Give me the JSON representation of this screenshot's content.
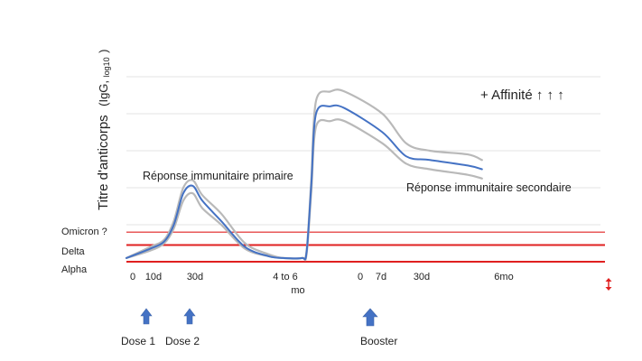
{
  "colors": {
    "mean_line": "#4472c4",
    "ci_line": "#b9b9b9",
    "threshold_line": "#e02020",
    "gridline": "#e3e3e3",
    "arrow": "#4472c4",
    "variant_arrow": "#e02020"
  },
  "chart_data": {
    "type": "line",
    "ylabel_main": "Titre d'anticorps",
    "ylabel_unit": "(IgG, ",
    "ylabel_sub": "log10",
    "ylabel_close": ")",
    "grid": true,
    "annotations": {
      "primary": "Réponse immunitaire primaire",
      "secondary": "Réponse immunitaire secondaire",
      "affinity": "+ Affinité ↑ ↑ ↑"
    },
    "x_ticks": [
      "0",
      "10d",
      "30d",
      "4 to 6",
      "mo",
      "0",
      "7d",
      "30d",
      "6mo"
    ],
    "thresholds": [
      {
        "label": "Omicron ?",
        "level": 0.16
      },
      {
        "label": "Delta",
        "level": 0.09
      },
      {
        "label": "Alpha",
        "level": 0.0
      }
    ],
    "series": [
      {
        "role": "upper",
        "points": [
          [
            0,
            0.02
          ],
          [
            0.05,
            0.08
          ],
          [
            0.08,
            0.12
          ],
          [
            0.1,
            0.22
          ],
          [
            0.12,
            0.4
          ],
          [
            0.14,
            0.44
          ],
          [
            0.16,
            0.36
          ],
          [
            0.2,
            0.26
          ],
          [
            0.25,
            0.1
          ],
          [
            0.3,
            0.04
          ],
          [
            0.33,
            0.02
          ],
          [
            0.37,
            0.02
          ],
          [
            0.38,
            0.06
          ],
          [
            0.39,
            0.45
          ],
          [
            0.4,
            0.87
          ],
          [
            0.43,
            0.92
          ],
          [
            0.46,
            0.92
          ],
          [
            0.54,
            0.8
          ],
          [
            0.59,
            0.64
          ],
          [
            0.64,
            0.6
          ],
          [
            0.72,
            0.58
          ],
          [
            0.75,
            0.55
          ]
        ]
      },
      {
        "role": "mean",
        "points": [
          [
            0,
            0.02
          ],
          [
            0.05,
            0.07
          ],
          [
            0.08,
            0.11
          ],
          [
            0.1,
            0.2
          ],
          [
            0.12,
            0.37
          ],
          [
            0.14,
            0.41
          ],
          [
            0.16,
            0.33
          ],
          [
            0.2,
            0.22
          ],
          [
            0.25,
            0.08
          ],
          [
            0.3,
            0.03
          ],
          [
            0.33,
            0.02
          ],
          [
            0.37,
            0.02
          ],
          [
            0.38,
            0.05
          ],
          [
            0.39,
            0.42
          ],
          [
            0.4,
            0.8
          ],
          [
            0.43,
            0.84
          ],
          [
            0.46,
            0.83
          ],
          [
            0.54,
            0.7
          ],
          [
            0.59,
            0.57
          ],
          [
            0.64,
            0.55
          ],
          [
            0.72,
            0.52
          ],
          [
            0.75,
            0.5
          ]
        ]
      },
      {
        "role": "lower",
        "points": [
          [
            0,
            0.02
          ],
          [
            0.05,
            0.06
          ],
          [
            0.08,
            0.1
          ],
          [
            0.1,
            0.18
          ],
          [
            0.12,
            0.33
          ],
          [
            0.14,
            0.37
          ],
          [
            0.16,
            0.29
          ],
          [
            0.2,
            0.2
          ],
          [
            0.25,
            0.07
          ],
          [
            0.3,
            0.03
          ],
          [
            0.33,
            0.02
          ],
          [
            0.37,
            0.02
          ],
          [
            0.38,
            0.04
          ],
          [
            0.39,
            0.38
          ],
          [
            0.4,
            0.73
          ],
          [
            0.43,
            0.76
          ],
          [
            0.46,
            0.76
          ],
          [
            0.54,
            0.64
          ],
          [
            0.59,
            0.53
          ],
          [
            0.64,
            0.5
          ],
          [
            0.72,
            0.47
          ],
          [
            0.75,
            0.45
          ]
        ]
      }
    ]
  },
  "doses": [
    {
      "label": "Dose 1"
    },
    {
      "label": "Dose 2"
    },
    {
      "label": "Booster"
    }
  ]
}
